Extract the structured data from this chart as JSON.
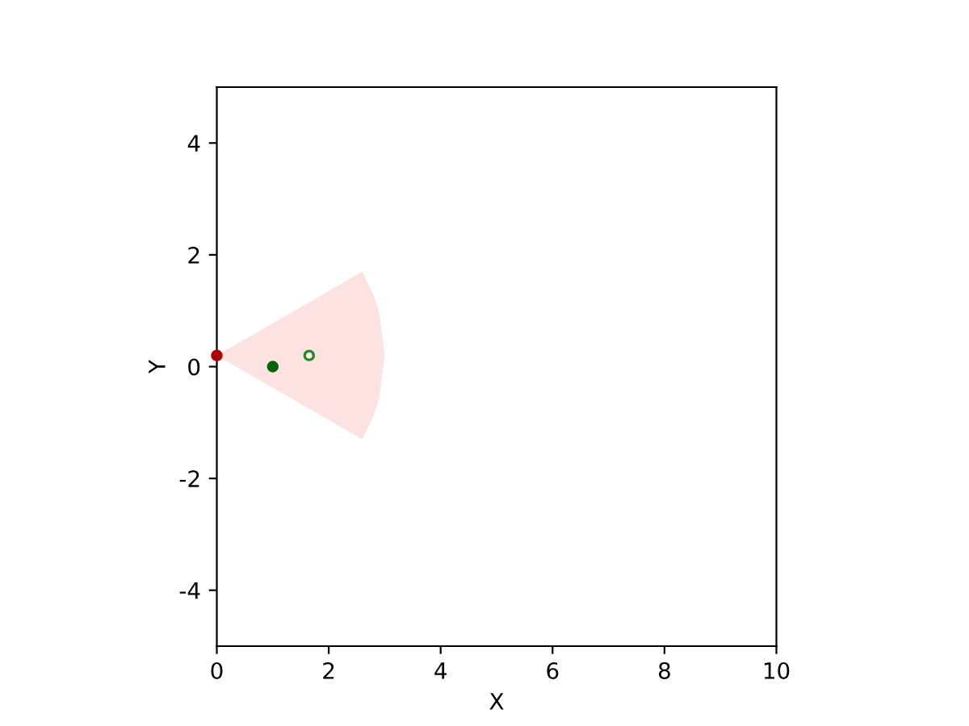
{
  "chart_data": {
    "type": "scatter",
    "xlabel": "X",
    "ylabel": "Y",
    "xlim": [
      0,
      10
    ],
    "ylim": [
      -5,
      5
    ],
    "xticks": [
      0,
      2,
      4,
      6,
      8,
      10
    ],
    "yticks": [
      -4,
      -2,
      0,
      2,
      4
    ],
    "grid": false,
    "series": [
      {
        "type": "area",
        "color": "#fde2e2",
        "x": [
          0,
          2.6,
          2.8,
          2.9,
          3.0,
          2.9,
          2.8,
          2.6
        ],
        "values": [
          0.2,
          1.7,
          1.28,
          0.97,
          0.2,
          -0.57,
          -0.88,
          -1.3
        ]
      },
      {
        "marker": "circle",
        "color": "#b00000",
        "x": [
          0
        ],
        "values": [
          0.2
        ]
      },
      {
        "marker": "circle",
        "color": "#006400",
        "x": [
          1
        ],
        "values": [
          0
        ]
      },
      {
        "marker": "circle",
        "color": "#228b22",
        "x": [
          1.65
        ],
        "values": [
          0.2
        ],
        "colors": [
          "#ffffff"
        ]
      }
    ]
  }
}
